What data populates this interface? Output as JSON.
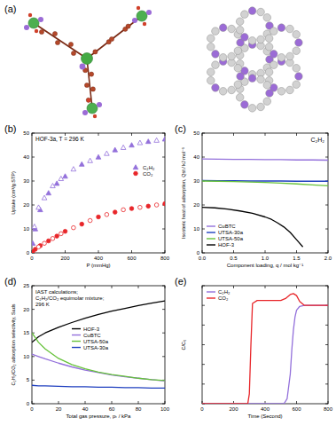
{
  "panel_a": {
    "label": "(a)"
  },
  "chart_data": [
    {
      "type": "scatter",
      "panel_label": "(b)",
      "title": "HOF-3a, T = 296 K",
      "x_label": "P (mmHg)",
      "y_label": "Uptake (cm³/g STP)",
      "xlim": [
        0,
        800
      ],
      "ylim": [
        0,
        50
      ],
      "xticks": [
        0,
        200,
        400,
        600,
        800
      ],
      "yticks": [
        0,
        10,
        20,
        30,
        40,
        50
      ],
      "legend": "center right",
      "series": [
        {
          "name": "C₂H₂",
          "color": "#9370db",
          "marker": "triangle",
          "x": [
            5,
            20,
            50,
            100,
            150,
            200,
            300,
            400,
            500,
            600,
            700,
            800
          ],
          "values": [
            4,
            10,
            18,
            25,
            29,
            32,
            37,
            40,
            43,
            45,
            46.5,
            47.5
          ]
        },
        {
          "name": "CO₂",
          "color": "#e8262a",
          "marker": "circle",
          "x": [
            5,
            20,
            50,
            100,
            150,
            200,
            300,
            400,
            500,
            600,
            700,
            800
          ],
          "values": [
            0.5,
            1.5,
            3,
            5,
            7,
            9,
            12,
            15,
            17,
            18.5,
            19.5,
            20.5
          ]
        },
        {
          "color": "#9370db",
          "marker": "triangle-open",
          "x": [
            750,
            650,
            550,
            450,
            350,
            250,
            175,
            125,
            75,
            40,
            15
          ],
          "values": [
            47,
            46,
            44,
            41.5,
            38.5,
            35,
            31,
            28,
            23,
            19,
            11
          ]
        },
        {
          "color": "#e8262a",
          "marker": "circle-open",
          "x": [
            750,
            650,
            550,
            450,
            350,
            250,
            175,
            125,
            75,
            40
          ],
          "values": [
            20,
            19,
            18,
            16,
            13.5,
            10.5,
            8,
            6,
            4,
            2.5
          ]
        }
      ]
    },
    {
      "type": "line",
      "panel_label": "(c)",
      "title": "C₂H₂",
      "x_label": "Component loading, q / mol kg⁻¹",
      "y_label": "Isosteric heat of adsorption, Qst / kJ mol⁻¹",
      "xlim": [
        0,
        2
      ],
      "ylim": [
        0,
        50
      ],
      "xticks": [
        {
          "value": 0,
          "label": "0.0"
        },
        {
          "value": 0.5,
          "label": "0.5"
        },
        {
          "value": 1,
          "label": "1.0"
        },
        {
          "value": 1.5,
          "label": "1.5"
        },
        {
          "value": 2,
          "label": "2.0"
        }
      ],
      "yticks": [
        0,
        10,
        20,
        30,
        40,
        50
      ],
      "legend": "lower left",
      "series": [
        {
          "name": "CuBTC",
          "color": "#9370db",
          "x": [
            0,
            0.25,
            0.5,
            0.75,
            1,
            1.25,
            1.5,
            1.75,
            2
          ],
          "values": [
            39.2,
            39.1,
            39,
            39,
            38.9,
            38.9,
            38.8,
            38.8,
            38.7
          ]
        },
        {
          "name": "UTSA-30a",
          "color": "#1f3fbf",
          "x": [
            0,
            0.25,
            0.5,
            0.75,
            1,
            1.25,
            1.5,
            1.75,
            2
          ],
          "values": [
            30.2,
            30.1,
            30.1,
            30,
            30,
            30,
            29.9,
            29.9,
            29.9
          ]
        },
        {
          "name": "UTSA-50a",
          "color": "#66c23a",
          "x": [
            0,
            0.25,
            0.5,
            0.75,
            1,
            1.25,
            1.5,
            1.75,
            2
          ],
          "values": [
            30,
            29.9,
            29.8,
            29.6,
            29.4,
            29.1,
            28.8,
            28.4,
            28
          ]
        },
        {
          "name": "HOF-3",
          "color": "#000000",
          "x": [
            0,
            0.2,
            0.4,
            0.6,
            0.8,
            1,
            1.1,
            1.2,
            1.3,
            1.4,
            1.5,
            1.6
          ],
          "values": [
            19,
            18.8,
            18.3,
            17.5,
            16.5,
            15,
            14,
            12.5,
            10.8,
            8.5,
            5.5,
            2.5
          ]
        }
      ]
    },
    {
      "type": "line",
      "panel_label": "(d)",
      "annotations": [
        "IAST calculations;",
        "C₂H₂/CO₂ equimolar mixture;",
        "296 K"
      ],
      "x_label": "Total gas pressure, pₜ / kPa",
      "y_label": "C₂H₂/CO₂ adsorption selectivity, Sads",
      "xlim": [
        0,
        100
      ],
      "ylim": [
        0,
        25
      ],
      "xticks": [
        0,
        20,
        40,
        60,
        80,
        100
      ],
      "yticks": [
        0,
        5,
        10,
        15,
        20,
        25
      ],
      "legend": "center",
      "x": [
        0,
        5,
        10,
        20,
        30,
        40,
        50,
        60,
        70,
        80,
        90,
        100
      ],
      "series": [
        {
          "name": "HOF-3",
          "color": "#000000",
          "values": [
            13,
            14.2,
            15,
            16.2,
            17.2,
            18.1,
            18.9,
            19.6,
            20.2,
            20.8,
            21.3,
            21.8
          ]
        },
        {
          "name": "CuBTC",
          "color": "#9370db",
          "values": [
            10.5,
            10,
            9.5,
            8.6,
            7.8,
            7.1,
            6.6,
            6.1,
            5.7,
            5.4,
            5.1,
            4.8
          ]
        },
        {
          "name": "UTSA-50a",
          "color": "#66c23a",
          "values": [
            15,
            13,
            11.6,
            9.6,
            8.3,
            7.4,
            6.7,
            6.2,
            5.8,
            5.4,
            5.1,
            4.9
          ]
        },
        {
          "name": "UTSA-30a",
          "color": "#1f3fbf",
          "values": [
            3.9,
            3.8,
            3.8,
            3.7,
            3.6,
            3.6,
            3.5,
            3.5,
            3.4,
            3.4,
            3.3,
            3.3
          ]
        }
      ]
    },
    {
      "type": "line",
      "panel_label": "(e)",
      "x_label": "Time (Second)",
      "y_label": "C/C₀",
      "xlim": [
        0,
        800
      ],
      "ylim": [
        0,
        1.2
      ],
      "xticks": [
        0,
        200,
        400,
        600,
        800
      ],
      "yticks": [
        0,
        0.2,
        0.4,
        0.6,
        0.8,
        1,
        1.2
      ],
      "tick_labels": "x",
      "legend": "upper left",
      "series": [
        {
          "name": "C₂H₂",
          "color": "#9370db",
          "x": [
            0,
            520,
            540,
            560,
            570,
            580,
            590,
            600,
            620,
            650,
            700,
            800
          ],
          "values": [
            0,
            0,
            0.05,
            0.3,
            0.55,
            0.75,
            0.88,
            0.95,
            0.99,
            1,
            1,
            1
          ]
        },
        {
          "name": "CO₂",
          "color": "#e8262a",
          "x": [
            0,
            290,
            300,
            310,
            320,
            350,
            400,
            450,
            500,
            530,
            560,
            580,
            600,
            620,
            650,
            700,
            800
          ],
          "values": [
            0,
            0,
            0.1,
            0.6,
            1.02,
            1.05,
            1.05,
            1.05,
            1.05,
            1.07,
            1.11,
            1.12,
            1.1,
            1.04,
            1,
            1,
            1
          ]
        }
      ]
    }
  ]
}
